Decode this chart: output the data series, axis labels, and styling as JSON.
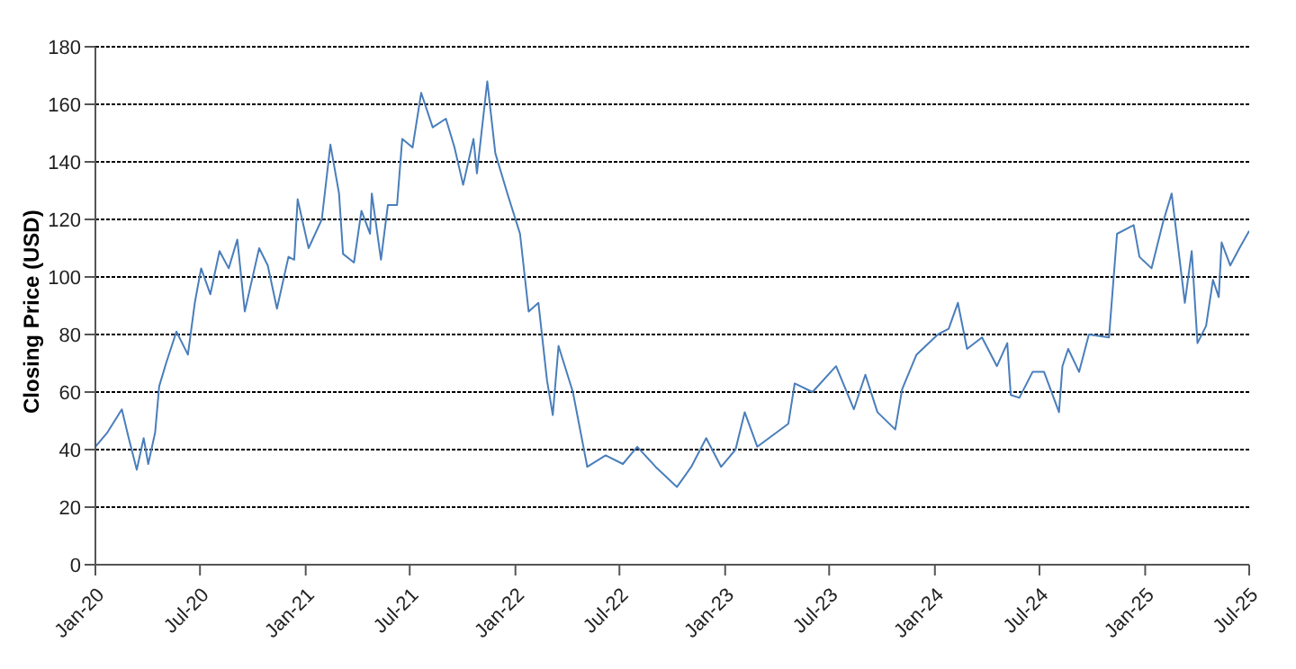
{
  "chart_data": {
    "type": "line",
    "ylabel": "Closing Price (USD)",
    "grid": "y",
    "line_style": "solid",
    "marker": "none",
    "xlim": [
      "2020-01-01",
      "2025-07-01"
    ],
    "xticks": [
      {
        "value": "2020-01-01",
        "label": "Jan-20"
      },
      {
        "value": "2020-07-01",
        "label": "Jul-20"
      },
      {
        "value": "2021-01-01",
        "label": "Jan-21"
      },
      {
        "value": "2021-07-01",
        "label": "Jul-21"
      },
      {
        "value": "2022-01-01",
        "label": "Jan-22"
      },
      {
        "value": "2022-07-01",
        "label": "Jul-22"
      },
      {
        "value": "2023-01-01",
        "label": "Jan-23"
      },
      {
        "value": "2023-07-01",
        "label": "Jul-23"
      },
      {
        "value": "2024-01-01",
        "label": "Jan-24"
      },
      {
        "value": "2024-07-01",
        "label": "Jul-24"
      },
      {
        "value": "2025-01-01",
        "label": "Jan-25"
      },
      {
        "value": "2025-07-01",
        "label": "Jul-25"
      }
    ],
    "ylim": [
      0,
      180
    ],
    "yticks": [
      0,
      20,
      40,
      60,
      80,
      100,
      120,
      140,
      160,
      180
    ],
    "x": [
      "2020-01-01",
      "2020-01-22",
      "2020-02-16",
      "2020-02-28",
      "2020-03-13",
      "2020-03-25",
      "2020-04-02",
      "2020-04-14",
      "2020-04-21",
      "2020-05-03",
      "2020-05-21",
      "2020-06-10",
      "2020-06-22",
      "2020-07-03",
      "2020-07-19",
      "2020-08-04",
      "2020-08-20",
      "2020-09-04",
      "2020-09-17",
      "2020-10-12",
      "2020-10-27",
      "2020-11-12",
      "2020-12-02",
      "2020-12-12",
      "2020-12-18",
      "2021-01-06",
      "2021-01-29",
      "2021-02-13",
      "2021-02-28",
      "2021-03-07",
      "2021-03-26",
      "2021-04-08",
      "2021-04-23",
      "2021-04-26",
      "2021-05-12",
      "2021-05-24",
      "2021-06-09",
      "2021-06-18",
      "2021-07-06",
      "2021-07-21",
      "2021-08-10",
      "2021-09-02",
      "2021-09-17",
      "2021-10-02",
      "2021-10-20",
      "2021-10-26",
      "2021-11-13",
      "2021-11-27",
      "2021-12-18",
      "2022-01-09",
      "2022-01-24",
      "2022-02-10",
      "2022-02-25",
      "2022-03-07",
      "2022-03-17",
      "2022-04-11",
      "2022-05-06",
      "2022-06-07",
      "2022-07-07",
      "2022-08-01",
      "2022-09-02",
      "2022-10-09",
      "2022-11-03",
      "2022-11-29",
      "2022-12-25",
      "2023-01-19",
      "2023-02-04",
      "2023-02-26",
      "2023-04-21",
      "2023-05-02",
      "2023-06-02",
      "2023-07-13",
      "2023-08-13",
      "2023-09-02",
      "2023-09-23",
      "2023-10-24",
      "2023-11-05",
      "2023-11-30",
      "2024-01-06",
      "2024-01-25",
      "2024-02-10",
      "2024-02-26",
      "2024-03-23",
      "2024-04-18",
      "2024-05-06",
      "2024-05-12",
      "2024-05-27",
      "2024-06-19",
      "2024-07-09",
      "2024-08-04",
      "2024-08-10",
      "2024-08-20",
      "2024-09-08",
      "2024-09-25",
      "2024-10-30",
      "2024-11-13",
      "2024-12-12",
      "2024-12-22",
      "2025-01-12",
      "2025-02-01",
      "2025-02-16",
      "2025-03-02",
      "2025-03-11",
      "2025-03-23",
      "2025-04-02",
      "2025-04-17",
      "2025-04-29",
      "2025-05-09",
      "2025-05-14",
      "2025-05-29",
      "2025-06-14",
      "2025-07-01"
    ],
    "series": [
      {
        "color": "#4a7ebb",
        "values": [
          41,
          46,
          54,
          44,
          33,
          44,
          35,
          46,
          62,
          70,
          81,
          73,
          91,
          103,
          94,
          109,
          103,
          113,
          88,
          110,
          104,
          89,
          107,
          106,
          127,
          110,
          120,
          146,
          129,
          108,
          105,
          123,
          115,
          129,
          106,
          125,
          125,
          148,
          145,
          164,
          152,
          155,
          145,
          132,
          148,
          136,
          168,
          143,
          129,
          115,
          88,
          91,
          64,
          52,
          76,
          60,
          34,
          38,
          35,
          41,
          34,
          27,
          34,
          44,
          34,
          40,
          53,
          41,
          49,
          63,
          60,
          69,
          54,
          66,
          53,
          47,
          61,
          73,
          80,
          82,
          91,
          75,
          79,
          69,
          77,
          59,
          58,
          67,
          67,
          53,
          69,
          75,
          67,
          80,
          79,
          115,
          118,
          107,
          103,
          119,
          129,
          106,
          91,
          109,
          77,
          83,
          99,
          93,
          112,
          104,
          110,
          116
        ]
      }
    ]
  }
}
